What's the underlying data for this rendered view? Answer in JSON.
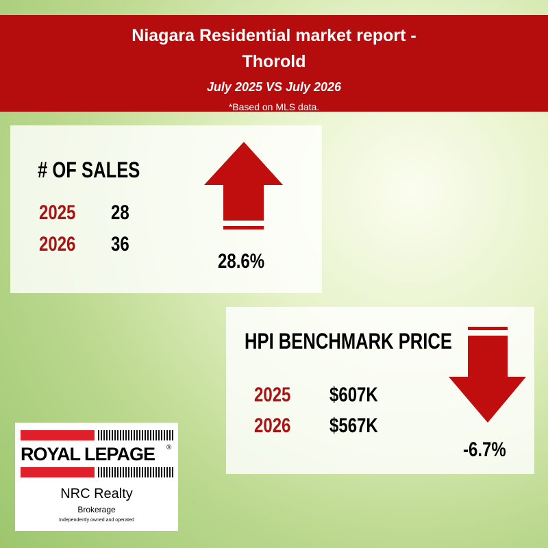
{
  "header": {
    "title_line1": "Niagara Residential market report -",
    "title_line2": "Thorold",
    "subtitle": "July 2025 VS July 2026",
    "note": "*Based on MLS data."
  },
  "sales": {
    "heading": "# OF SALES",
    "rows": [
      {
        "year": "2025",
        "value": "28"
      },
      {
        "year": "2026",
        "value": "36"
      }
    ],
    "change": "28.6%"
  },
  "price": {
    "heading": "HPI BENCHMARK PRICE",
    "rows": [
      {
        "year": "2025",
        "value": "$607K"
      },
      {
        "year": "2026",
        "value": "$567K"
      }
    ],
    "change": "-6.7%"
  },
  "logo": {
    "brand": "ROYAL LEPAGE",
    "registered": "®",
    "office": "NRC Realty",
    "type": "Brokerage",
    "tagline": "Independently owned and operated"
  }
}
